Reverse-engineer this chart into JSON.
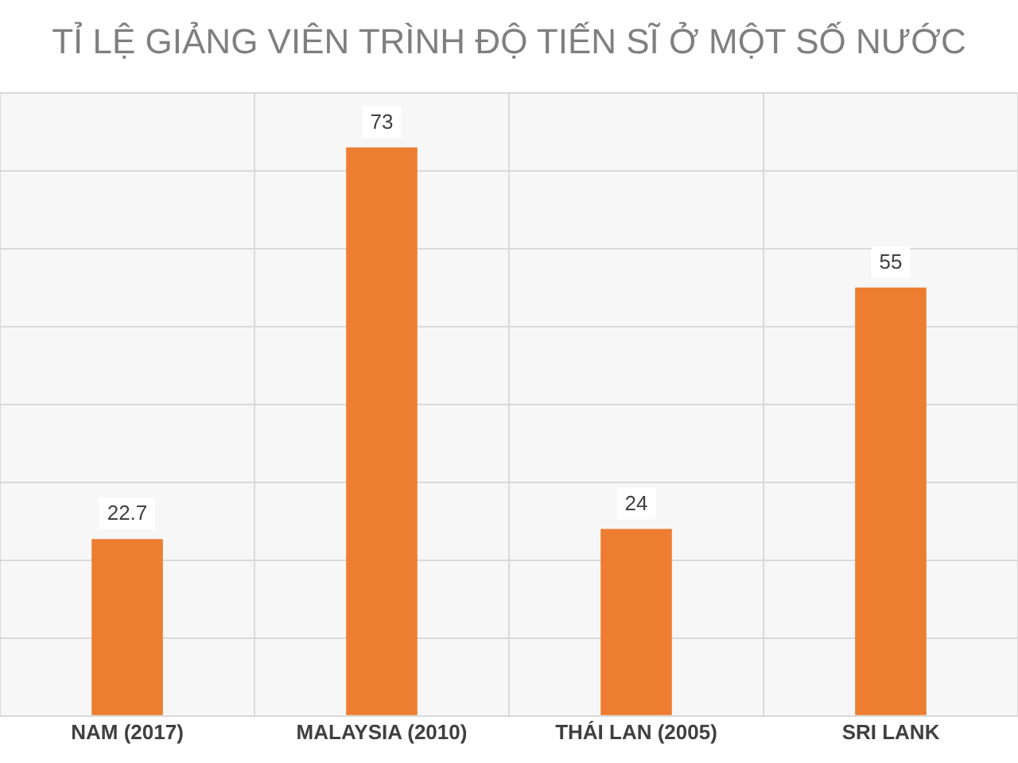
{
  "chart_data": {
    "type": "bar",
    "title": "TỈ LỆ GIẢNG VIÊN TRÌNH ĐỘ TIẾN SĨ Ở MỘT SỐ NƯỚC",
    "categories": [
      "NAM (2017)",
      "MALAYSIA (2010)",
      "THÁI LAN (2005)",
      "SRI LANK"
    ],
    "values": [
      22.7,
      73,
      24,
      55
    ],
    "color": "#ed7d31",
    "ylim": [
      0,
      80
    ],
    "yticks": [
      {
        "value": 0,
        "label": null
      },
      {
        "value": 10,
        "label": null
      },
      {
        "value": 20,
        "label": null
      },
      {
        "value": 30,
        "label": null
      },
      {
        "value": 40,
        "label": null
      },
      {
        "value": 50,
        "label": null
      },
      {
        "value": 60,
        "label": null
      },
      {
        "value": 70,
        "label": null
      },
      {
        "value": 80,
        "label": null
      }
    ],
    "tick_labels": "x",
    "grid": true,
    "data_labels": true,
    "legend": false
  }
}
